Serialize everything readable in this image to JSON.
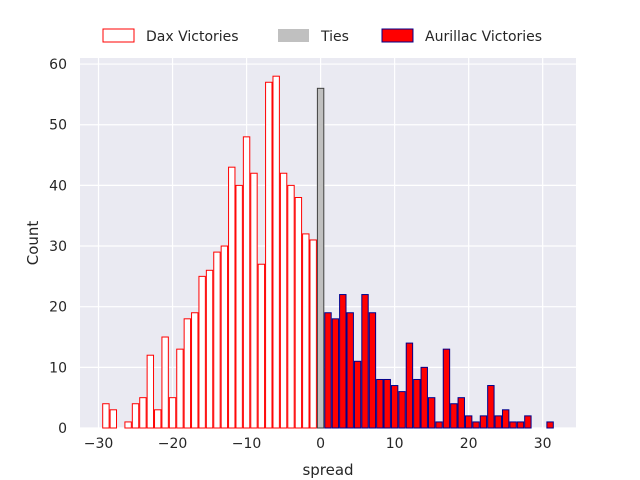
{
  "chart_data": {
    "type": "bar",
    "subtype": "histogram",
    "xlabel": "spread",
    "ylabel": "Count",
    "xlim": [
      -32.5,
      34.5
    ],
    "ylim": [
      0,
      61
    ],
    "xticks": [
      -30,
      -20,
      -10,
      0,
      10,
      20,
      30
    ],
    "xtick_labels": [
      "−30",
      "−20",
      "−10",
      "0",
      "10",
      "20",
      "30"
    ],
    "yticks": [
      0,
      10,
      20,
      30,
      40,
      50,
      60
    ],
    "ytick_labels": [
      "0",
      "10",
      "20",
      "30",
      "40",
      "50",
      "60"
    ],
    "grid": true,
    "background": "#eaeaf2",
    "legend_position": "top-center",
    "series": [
      {
        "name": "Dax Victories",
        "style": "outline",
        "face": "#ffffff",
        "edge": "#ff0000",
        "x": [
          -29,
          -28,
          -26,
          -25,
          -24,
          -23,
          -22,
          -21,
          -20,
          -19,
          -18,
          -17,
          -16,
          -15,
          -14,
          -13,
          -12,
          -11,
          -10,
          -9,
          -8,
          -7,
          -6,
          -5,
          -4,
          -3,
          -2,
          -1
        ],
        "values": [
          4,
          3,
          1,
          4,
          5,
          12,
          3,
          15,
          5,
          13,
          18,
          19,
          25,
          26,
          29,
          30,
          43,
          40,
          48,
          42,
          27,
          57,
          58,
          42,
          40,
          38,
          32,
          31
        ]
      },
      {
        "name": "Ties",
        "style": "filled",
        "face": "#c0c0c0",
        "edge": "#404040",
        "x": [
          0
        ],
        "values": [
          56
        ]
      },
      {
        "name": "Aurillac Victories",
        "style": "filled",
        "face": "#ff0000",
        "edge": "#00008b",
        "x": [
          1,
          2,
          3,
          4,
          5,
          6,
          7,
          8,
          9,
          10,
          11,
          12,
          13,
          14,
          15,
          16,
          17,
          18,
          19,
          20,
          21,
          22,
          23,
          24,
          25,
          26,
          27,
          28,
          31
        ],
        "values": [
          19,
          18,
          22,
          19,
          11,
          22,
          19,
          8,
          8,
          7,
          6,
          14,
          8,
          10,
          5,
          1,
          13,
          4,
          5,
          2,
          1,
          2,
          7,
          2,
          3,
          1,
          1,
          2,
          1
        ]
      }
    ]
  }
}
